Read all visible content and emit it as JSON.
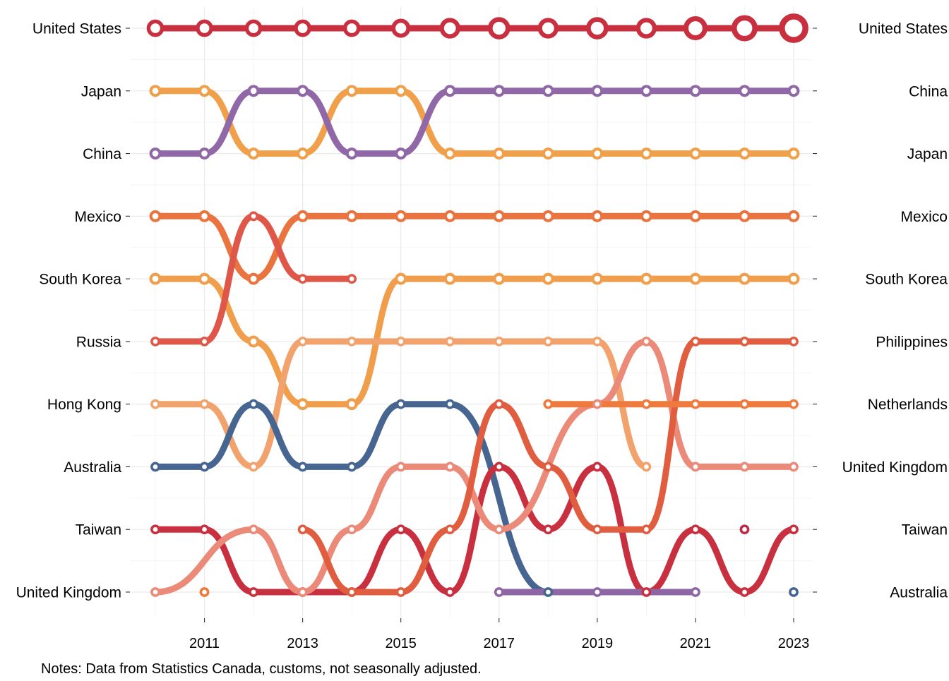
{
  "chart_data": {
    "type": "line",
    "subtype": "bump",
    "title": "",
    "xlabel": "",
    "ylabel": "",
    "x": [
      2010,
      2011,
      2012,
      2013,
      2014,
      2015,
      2016,
      2017,
      2018,
      2019,
      2020,
      2021,
      2022,
      2023
    ],
    "x_ticks": [
      "2011",
      "2013",
      "2015",
      "2017",
      "2019",
      "2021",
      "2023"
    ],
    "y_reversed": true,
    "ranks": [
      1,
      2,
      3,
      4,
      5,
      6,
      7,
      8,
      9,
      10
    ],
    "left_labels": [
      "United States",
      "Japan",
      "China",
      "Mexico",
      "South Korea",
      "Russia",
      "Hong Kong",
      "Australia",
      "Taiwan",
      "United Kingdom"
    ],
    "right_labels": [
      "United States",
      "China",
      "Japan",
      "Mexico",
      "South Korea",
      "Philippines",
      "Netherlands",
      "United Kingdom",
      "Taiwan",
      "Australia"
    ],
    "grid": true,
    "legend": "none",
    "note": "Notes: Data from Statistics Canada, customs, not seasonally adjusted.",
    "series": [
      {
        "color": "#c8303f",
        "ranks": [
          1,
          1,
          1,
          1,
          1,
          1,
          1,
          1,
          1,
          1,
          1,
          1,
          1,
          1
        ],
        "sizes": [
          3,
          3,
          3,
          3,
          3,
          3.3,
          3.6,
          3.9,
          3.6,
          3.9,
          3.6,
          4.2,
          4.6,
          5.2
        ]
      },
      {
        "color": "#f0a04a",
        "ranks": [
          2,
          2,
          3,
          3,
          2,
          2,
          3,
          3,
          3,
          3,
          3,
          3,
          3,
          3
        ],
        "sizes": [
          2,
          2,
          2,
          2,
          2,
          2,
          2,
          2,
          2,
          2,
          2,
          2,
          2,
          2
        ]
      },
      {
        "color": "#9068a8",
        "ranks": [
          3,
          3,
          2,
          2,
          3,
          3,
          2,
          2,
          2,
          2,
          2,
          2,
          2,
          2
        ],
        "sizes": [
          2,
          2,
          2,
          2,
          2,
          2,
          2,
          2,
          2,
          2,
          2,
          2,
          2,
          2
        ]
      },
      {
        "color": "#ea7440",
        "ranks": [
          4,
          4,
          5,
          4,
          4,
          4,
          4,
          4,
          4,
          4,
          4,
          4,
          4,
          4
        ],
        "sizes": [
          2,
          2,
          2,
          2,
          2,
          2,
          2,
          2,
          2,
          2,
          2,
          2,
          2,
          2
        ]
      },
      {
        "color": "#f09e4c",
        "ranks": [
          5,
          5,
          6,
          7,
          7,
          5,
          5,
          5,
          5,
          5,
          5,
          5,
          5,
          5
        ],
        "sizes": [
          2,
          2,
          2,
          2,
          2,
          2,
          2,
          2,
          2,
          2,
          2,
          2,
          2,
          2
        ]
      },
      {
        "color": "#de5748",
        "ranks": [
          6,
          6,
          4,
          5,
          5,
          null,
          null,
          null,
          null,
          null,
          null,
          null,
          null,
          null
        ],
        "sizes": [
          1.6,
          1.6,
          1.6,
          1.6,
          1.6,
          1.6,
          1.6,
          1.6,
          1.6,
          1.6,
          1.6,
          1.6,
          1.6,
          1.6
        ]
      },
      {
        "color": "#f2a26c",
        "ranks": [
          7,
          7,
          8,
          6,
          6,
          6,
          6,
          6,
          6,
          6,
          8,
          null,
          null,
          null
        ],
        "sizes": [
          1.6,
          1.6,
          1.6,
          1.6,
          1.6,
          1.6,
          1.6,
          1.6,
          1.6,
          1.6,
          1.6,
          1.6,
          1.6,
          1.6
        ]
      },
      {
        "color": "#466590",
        "ranks": [
          8,
          8,
          7,
          8,
          8,
          7,
          7,
          null,
          10,
          null,
          null,
          null,
          null,
          10
        ],
        "sizes": [
          1.6,
          1.6,
          1.6,
          1.6,
          1.6,
          1.6,
          1.6,
          1.6,
          1.6,
          1.6,
          1.6,
          1.6,
          1.6,
          1.6
        ]
      },
      {
        "color": "#c8303f",
        "ranks": [
          9,
          9,
          10,
          10,
          10,
          9,
          10,
          8,
          9,
          8,
          10,
          9,
          10,
          9
        ],
        "sizes": [
          1.6,
          1.6,
          1.6,
          1.6,
          1.6,
          1.6,
          1.6,
          1.6,
          1.6,
          1.6,
          1.6,
          1.6,
          1.6,
          1.6
        ]
      },
      {
        "color": "#ec8a7a",
        "ranks": [
          10,
          null,
          9,
          10,
          9,
          8,
          8,
          9,
          null,
          7,
          6,
          8,
          8,
          8
        ],
        "sizes": [
          1.6,
          1.6,
          1.6,
          1.6,
          1.6,
          1.6,
          1.6,
          1.6,
          1.6,
          1.6,
          1.6,
          1.6,
          1.6,
          1.6
        ]
      },
      {
        "color": "#e05d40",
        "ranks": [
          null,
          null,
          null,
          9,
          10,
          10,
          9,
          7,
          8,
          9,
          9,
          6,
          6,
          6
        ],
        "sizes": [
          1.6,
          1.6,
          1.6,
          1.6,
          1.6,
          1.6,
          1.6,
          1.6,
          1.6,
          1.6,
          1.6,
          1.6,
          1.6,
          1.6
        ]
      },
      {
        "color": "#ee7a3e",
        "ranks": [
          null,
          10,
          null,
          null,
          null,
          null,
          null,
          null,
          7,
          null,
          7,
          7,
          7,
          7
        ],
        "sizes": [
          1.6,
          1.6,
          1.6,
          1.6,
          1.6,
          1.6,
          1.6,
          1.6,
          1.6,
          1.6,
          1.6,
          1.6,
          1.6,
          1.6
        ]
      },
      {
        "color": "#8e66a6",
        "ranks": [
          null,
          null,
          null,
          null,
          null,
          null,
          null,
          10,
          null,
          10,
          null,
          10,
          null,
          null
        ],
        "sizes": [
          1.6,
          1.6,
          1.6,
          1.6,
          1.6,
          1.6,
          1.6,
          1.6,
          1.6,
          1.6,
          1.6,
          1.6,
          1.6,
          1.6
        ]
      },
      {
        "color": "#be2a48",
        "ranks": [
          null,
          null,
          null,
          null,
          null,
          null,
          null,
          null,
          null,
          null,
          null,
          null,
          9,
          null
        ],
        "sizes": [
          1.6,
          1.6,
          1.6,
          1.6,
          1.6,
          1.6,
          1.6,
          1.6,
          1.6,
          1.6,
          1.6,
          1.6,
          1.6,
          1.6
        ]
      }
    ]
  }
}
